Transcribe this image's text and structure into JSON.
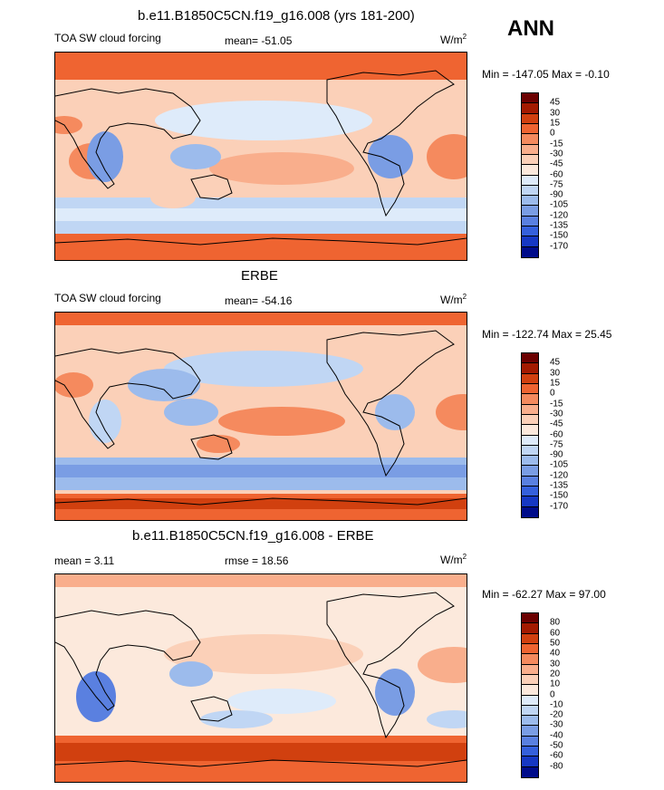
{
  "season": "ANN",
  "panels": [
    {
      "title": "b.e11.B1850C5CN.f19_g16.008 (yrs 181-200)",
      "left_label": "TOA SW cloud forcing",
      "center_label": "mean= -51.05",
      "units_main": "W/m",
      "units_exp": "2",
      "minmax": "Min = -147.05 Max =  -0.10",
      "colorbar": {
        "labels": [
          "45",
          "30",
          "15",
          "0",
          "-15",
          "-30",
          "-45",
          "-60",
          "-75",
          "-90",
          "-105",
          "-120",
          "-135",
          "-150",
          "-170"
        ],
        "colors": [
          "#6b0000",
          "#a31a00",
          "#d1400f",
          "#ef6431",
          "#f58a5e",
          "#f9ae8c",
          "#fbd0b8",
          "#fce9dc",
          "#deebfa",
          "#c0d6f4",
          "#9cbbec",
          "#7a9de4",
          "#5a80e0",
          "#3560dc",
          "#1638c4",
          "#000c8a"
        ]
      }
    },
    {
      "title": "ERBE",
      "left_label": "TOA SW cloud forcing",
      "center_label": "mean= -54.16",
      "units_main": "W/m",
      "units_exp": "2",
      "minmax": "Min = -122.74 Max =  25.45",
      "colorbar": {
        "labels": [
          "45",
          "30",
          "15",
          "0",
          "-15",
          "-30",
          "-45",
          "-60",
          "-75",
          "-90",
          "-105",
          "-120",
          "-135",
          "-150",
          "-170"
        ],
        "colors": [
          "#6b0000",
          "#a31a00",
          "#d1400f",
          "#ef6431",
          "#f58a5e",
          "#f9ae8c",
          "#fbd0b8",
          "#fce9dc",
          "#deebfa",
          "#c0d6f4",
          "#9cbbec",
          "#7a9de4",
          "#5a80e0",
          "#3560dc",
          "#1638c4",
          "#000c8a"
        ]
      }
    },
    {
      "title": "b.e11.B1850C5CN.f19_g16.008 - ERBE",
      "left_label": "mean =   3.11",
      "center_label": "rmse =  18.56",
      "units_main": "W/m",
      "units_exp": "2",
      "minmax": "Min = -62.27 Max =  97.00",
      "colorbar": {
        "labels": [
          "80",
          "60",
          "50",
          "40",
          "30",
          "20",
          "10",
          "0",
          "-10",
          "-20",
          "-30",
          "-40",
          "-50",
          "-60",
          "-80"
        ],
        "colors": [
          "#6b0000",
          "#a31a00",
          "#d1400f",
          "#ef6431",
          "#f58a5e",
          "#f9ae8c",
          "#fbd0b8",
          "#fce9dc",
          "#deebfa",
          "#c0d6f4",
          "#9cbbec",
          "#7a9de4",
          "#5a80e0",
          "#3560dc",
          "#1638c4",
          "#000c8a"
        ]
      }
    }
  ]
}
